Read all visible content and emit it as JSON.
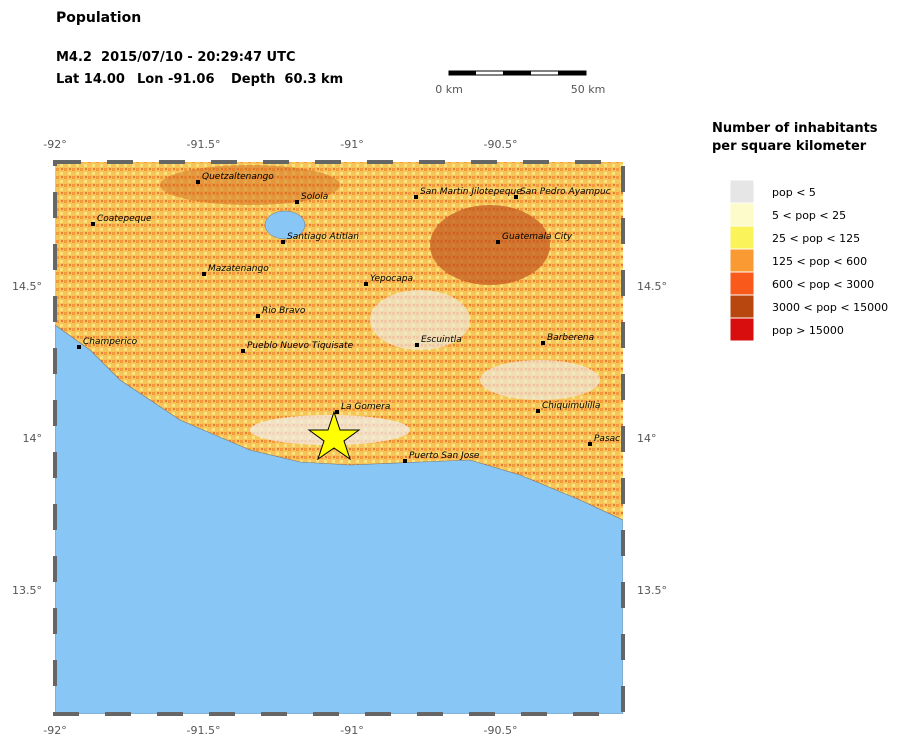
{
  "header": {
    "title": "Population",
    "line1": "M4.2  2015/07/10 - 20:29:47 UTC",
    "lat": "Lat 14.00",
    "lon": "Lon -91.06",
    "depth": "Depth  60.3 km"
  },
  "scale_bar": {
    "left": "0 km",
    "right": "50 km"
  },
  "axes": {
    "lon_ticks": [
      {
        "value": -92,
        "label": "-92°"
      },
      {
        "value": -91.5,
        "label": "-91.5°"
      },
      {
        "value": -91,
        "label": "-91°"
      },
      {
        "value": -90.5,
        "label": "-90.5°"
      }
    ],
    "lat_ticks": [
      {
        "value": 14.5,
        "label": "14.5°"
      },
      {
        "value": 14,
        "label": "14°"
      },
      {
        "value": 13.5,
        "label": "13.5°"
      }
    ]
  },
  "cities": [
    "Quetzaltenango",
    "Solola",
    "Coatepeque",
    "Santiago Atitlan",
    "Mazatenango",
    "San Martin Jilotepeque",
    "San Pedro Ayampuc",
    "Guatemala City",
    "Yepocapa",
    "Rio Bravo",
    "Champerico",
    "Pueblo Nuevo Tiquisate",
    "Escuintla",
    "Barberena",
    "La Gomera",
    "Chiquimulilla",
    "Puerto San Jose",
    "Pasac"
  ],
  "legend": {
    "title_line1": "Number of inhabitants",
    "title_line2": "per square kilometer",
    "items": [
      {
        "label": "pop < 5",
        "color": "#e6e6e6"
      },
      {
        "label": "5 < pop < 25",
        "color": "#fdfbc9"
      },
      {
        "label": "25 < pop < 125",
        "color": "#fbf35a"
      },
      {
        "label": "125 < pop < 600",
        "color": "#f99a33"
      },
      {
        "label": "600 < pop < 3000",
        "color": "#f95a1b"
      },
      {
        "label": "3000 < pop < 15000",
        "color": "#b8460f"
      },
      {
        "label": "pop > 15000",
        "color": "#d80d0d"
      }
    ]
  }
}
